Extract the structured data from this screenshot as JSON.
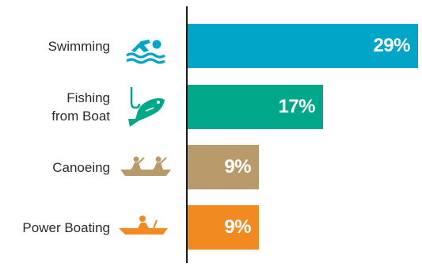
{
  "chart_data": {
    "type": "bar",
    "orientation": "horizontal",
    "categories": [
      "Swimming",
      "Fishing\nfrom Boat",
      "Canoeing",
      "Power Boating"
    ],
    "values": [
      29,
      17,
      9,
      9
    ],
    "value_labels": [
      "29%",
      "17%",
      "9%",
      "9%"
    ],
    "unit": "%",
    "xlim": [
      0,
      29
    ],
    "grid": false,
    "legend": "none"
  },
  "colors": {
    "swimming": "#00a5c8",
    "fishing": "#00a88a",
    "canoeing": "#b99a6b",
    "power_boating": "#f28a22",
    "axis": "#1a1a1a",
    "label_text": "#2b2b2b",
    "value_text": "#ffffff"
  },
  "icons": [
    "swimmer-icon",
    "fish-on-hook-icon",
    "canoe-rowers-icon",
    "power-boat-icon"
  ]
}
